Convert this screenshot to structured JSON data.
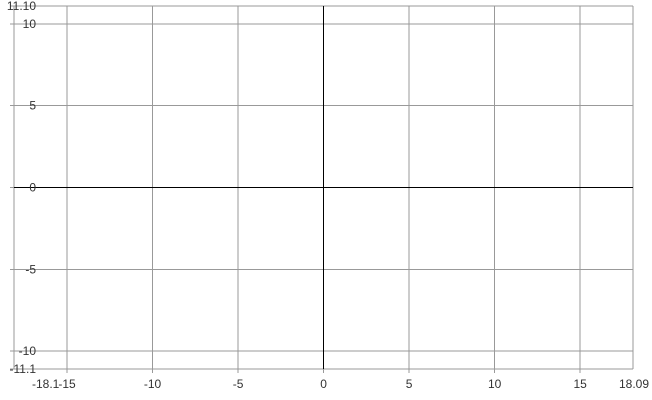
{
  "chart_data": {
    "type": "scatter",
    "title": "",
    "xlabel": "",
    "ylabel": "",
    "xlim": [
      -18.1,
      18.09
    ],
    "ylim": [
      -11.1,
      11.1
    ],
    "grid": true,
    "x_ticks": [
      -15,
      -10,
      -5,
      0,
      5,
      10,
      15
    ],
    "y_ticks": [
      -10,
      -5,
      0,
      5,
      10
    ],
    "x_tick_labels": [
      "-15",
      "-10",
      "-5",
      "0",
      "5",
      "10",
      "15"
    ],
    "y_tick_labels": [
      "-10",
      "-5",
      "0",
      "5",
      "10"
    ],
    "x_min_label": "-18.1",
    "x_max_label": "18.09",
    "y_min_label": "-11.1",
    "y_max_label": "11.10",
    "series": []
  },
  "colors": {
    "grid": "#999999",
    "axis": "#000000",
    "text": "#333333",
    "background": "#ffffff"
  }
}
